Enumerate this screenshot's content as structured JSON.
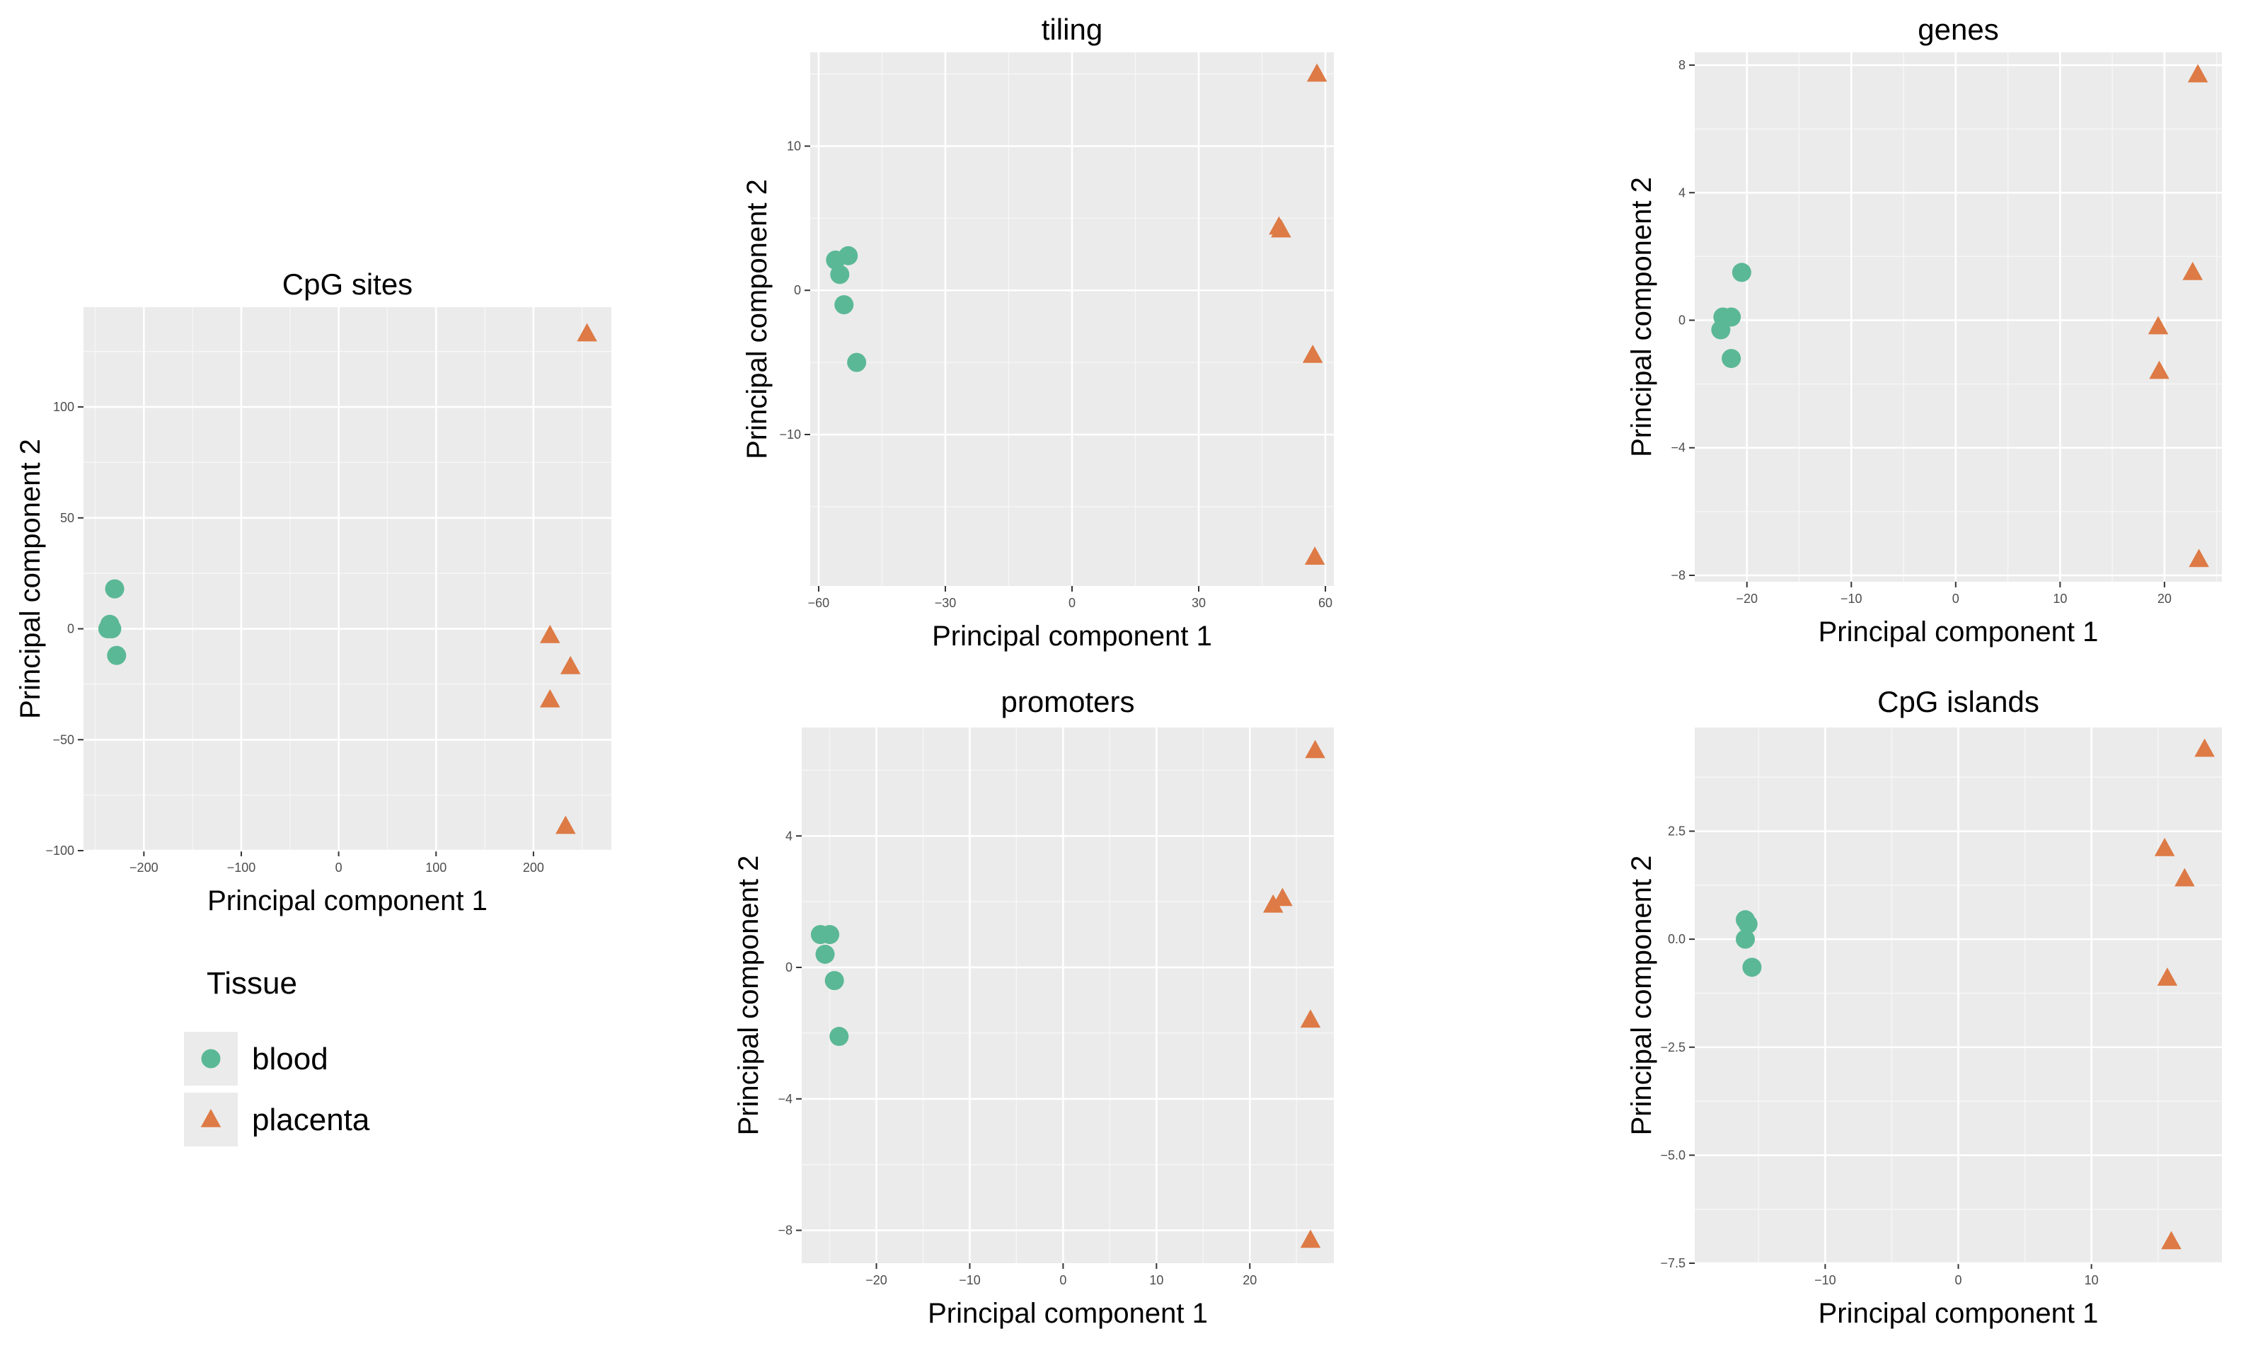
{
  "colors": {
    "blood": "#5bb896",
    "placenta": "#dd7a45",
    "panel_bg": "#ebebeb"
  },
  "legend": {
    "title": "Tissue",
    "entries": [
      {
        "label": "blood",
        "shape": "circle",
        "color": "#5bb896"
      },
      {
        "label": "placenta",
        "shape": "triangle",
        "color": "#dd7a45"
      }
    ]
  },
  "chart_data": [
    {
      "type": "scatter",
      "title": "CpG sites",
      "xlabel": "Principal component 1",
      "ylabel": "Principal component 2",
      "xlim": [
        -262,
        280
      ],
      "ylim": [
        -100,
        145
      ],
      "xticks": [
        -200,
        -100,
        0,
        100,
        200
      ],
      "yticks": [
        -100,
        -50,
        0,
        50,
        100
      ],
      "grid": true,
      "series": [
        {
          "name": "blood",
          "shape": "circle",
          "x": [
            -230,
            -235,
            -237,
            -233,
            -228
          ],
          "y": [
            18,
            2,
            0,
            0,
            -12
          ]
        },
        {
          "name": "placenta",
          "shape": "triangle",
          "x": [
            255,
            217,
            238,
            217,
            233
          ],
          "y": [
            133,
            -3,
            -17,
            -32,
            -89
          ]
        }
      ]
    },
    {
      "type": "scatter",
      "title": "tiling",
      "xlabel": "Principal component 1",
      "ylabel": "Principal component 2",
      "xlim": [
        -62,
        62
      ],
      "ylim": [
        -20.5,
        16.5
      ],
      "xticks": [
        -60,
        -30,
        0,
        30,
        60
      ],
      "yticks": [
        -10,
        0,
        10
      ],
      "grid": true,
      "series": [
        {
          "name": "blood",
          "shape": "circle",
          "x": [
            -56,
            -55,
            -53,
            -54,
            -51
          ],
          "y": [
            2.1,
            1.1,
            2.4,
            -1,
            -5
          ]
        },
        {
          "name": "placenta",
          "shape": "triangle",
          "x": [
            58,
            49,
            49.5,
            57,
            57.5
          ],
          "y": [
            15,
            4.4,
            4.2,
            -4.5,
            -18.5
          ]
        }
      ]
    },
    {
      "type": "scatter",
      "title": "genes",
      "xlabel": "Principal component 1",
      "ylabel": "Principal component 2",
      "xlim": [
        -25,
        25.5
      ],
      "ylim": [
        -8.2,
        8.4
      ],
      "xticks": [
        -20,
        -10,
        0,
        10,
        20
      ],
      "yticks": [
        -8,
        -4,
        0,
        4,
        8
      ],
      "grid": true,
      "series": [
        {
          "name": "blood",
          "shape": "circle",
          "x": [
            -20.5,
            -22.3,
            -21.5,
            -22.5,
            -21.5
          ],
          "y": [
            1.5,
            0.1,
            0.1,
            -0.3,
            -1.2
          ]
        },
        {
          "name": "placenta",
          "shape": "triangle",
          "x": [
            23.2,
            22.7,
            19.4,
            19.5,
            23.3
          ],
          "y": [
            7.7,
            1.5,
            -0.2,
            -1.6,
            -7.5
          ]
        }
      ]
    },
    {
      "type": "scatter",
      "title": "promoters",
      "xlabel": "Principal component 1",
      "ylabel": "Principal component 2",
      "xlim": [
        -28,
        29
      ],
      "ylim": [
        -9,
        7.3
      ],
      "xticks": [
        -20,
        -10,
        0,
        10,
        20
      ],
      "yticks": [
        -8,
        -4,
        0,
        4
      ],
      "grid": true,
      "series": [
        {
          "name": "blood",
          "shape": "circle",
          "x": [
            -26,
            -25,
            -25.5,
            -24.5,
            -24
          ],
          "y": [
            1,
            1,
            0.4,
            -0.4,
            -2.1
          ]
        },
        {
          "name": "placenta",
          "shape": "triangle",
          "x": [
            27,
            23.5,
            22.5,
            26.5,
            26.5
          ],
          "y": [
            6.6,
            2.1,
            1.9,
            -1.6,
            -8.3
          ]
        }
      ]
    },
    {
      "type": "scatter",
      "title": "CpG islands",
      "xlabel": "Principal component 1",
      "ylabel": "Principal component 2",
      "xlim": [
        -19.8,
        19.8
      ],
      "ylim": [
        -7.5,
        4.9
      ],
      "xticks": [
        -10,
        0,
        10
      ],
      "yticks": [
        -7.5,
        -5.0,
        -2.5,
        0.0,
        2.5
      ],
      "ytick_labels": [
        "−7.5",
        "−5.0",
        "−2.5",
        "0.0",
        "2.5"
      ],
      "grid": true,
      "series": [
        {
          "name": "blood",
          "shape": "circle",
          "x": [
            -16,
            -15.8,
            -16,
            -15.5
          ],
          "y": [
            0.45,
            0.35,
            0,
            -0.65
          ]
        },
        {
          "name": "placenta",
          "shape": "triangle",
          "x": [
            18.5,
            15.5,
            17,
            15.7,
            16
          ],
          "y": [
            4.4,
            2.1,
            1.4,
            -0.9,
            -7
          ]
        }
      ]
    }
  ]
}
